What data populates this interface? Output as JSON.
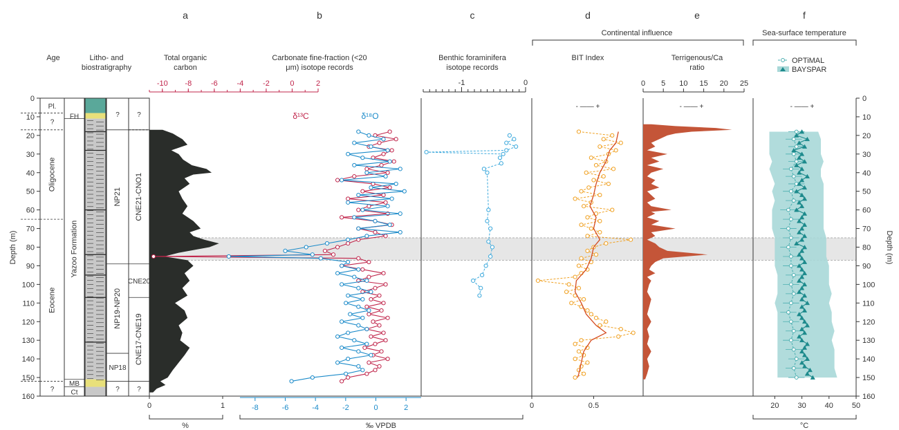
{
  "colors": {
    "toc": "#2a2d2a",
    "d13c": "#c0244a",
    "d18o": "#1a8ac9",
    "benthic": "#3aa8dc",
    "bit": "#f0a020",
    "bit_smooth": "#d44a1e",
    "terr": "#c45538",
    "optimal": "#4aaeb0",
    "bayspar": "#1d8a8c",
    "band": "#c8c8c8",
    "sst_fill": "#a8d8d8"
  },
  "depth_axis": {
    "label": "Depth (m)",
    "ticks": [
      0,
      10,
      20,
      30,
      40,
      50,
      60,
      70,
      80,
      90,
      100,
      110,
      120,
      130,
      140,
      150,
      160
    ],
    "range": [
      0,
      160
    ]
  },
  "highlight_band": [
    75,
    87
  ],
  "strat": {
    "col_headers": {
      "age": "Age",
      "litho": "Litho- and biostratigraphy"
    },
    "ages": [
      {
        "label": "Pl.",
        "top": 0,
        "bottom": 8
      },
      {
        "label": "?",
        "top": 8,
        "bottom": 17
      },
      {
        "label": "Oligocene",
        "top": 17,
        "bottom": 65
      },
      {
        "label": "Eocene",
        "top": 65,
        "bottom": 152
      },
      {
        "label": "?",
        "top": 152,
        "bottom": 160
      }
    ],
    "formations": [
      {
        "label": "FH",
        "top": 8,
        "bottom": 11
      },
      {
        "label": "Yazoo Formation",
        "top": 11,
        "bottom": 151
      },
      {
        "label": "MB",
        "top": 151,
        "bottom": 155
      },
      {
        "label": "Ct",
        "top": 155,
        "bottom": 160
      }
    ],
    "np": [
      {
        "label": "?",
        "top": 0,
        "bottom": 17
      },
      {
        "label": "NP21",
        "top": 17,
        "bottom": 89
      },
      {
        "label": "NP19-NP20",
        "top": 89,
        "bottom": 137
      },
      {
        "label": "NP18",
        "top": 137,
        "bottom": 152
      },
      {
        "label": "?",
        "top": 152,
        "bottom": 160
      }
    ],
    "cne": [
      {
        "label": "?",
        "top": 0,
        "bottom": 17
      },
      {
        "label": "CNE21-CNO1",
        "top": 17,
        "bottom": 89
      },
      {
        "label": "CNE20",
        "top": 89,
        "bottom": 107
      },
      {
        "label": "CNE17-CNE19",
        "top": 107,
        "bottom": 152
      },
      {
        "label": "?",
        "top": 152,
        "bottom": 160
      }
    ]
  },
  "panels": {
    "a": {
      "letter": "a",
      "title": "Total organic carbon",
      "unit": "%",
      "ticks": [
        0,
        1
      ]
    },
    "b": {
      "letter": "b",
      "title": "Carbonate fine-fraction (<20 μm) isotope records",
      "top_ticks": [
        -10,
        -8,
        -6,
        -4,
        -2,
        0,
        2
      ],
      "bottom_ticks": [
        -8,
        -6,
        -4,
        -2,
        0,
        2
      ],
      "unit": "‰ VPDB",
      "label_d13c": "δ¹³C",
      "label_d18o": "δ¹⁸O"
    },
    "c": {
      "letter": "c",
      "title": "Benthic foraminifera isotope records",
      "top_ticks": [
        -1,
        0
      ]
    },
    "d": {
      "letter": "d",
      "title": "BIT Index",
      "ticks": [
        0,
        0.5
      ],
      "trend": "-  ——  +"
    },
    "e": {
      "letter": "e",
      "title": "Terrigenous/Ca ratio",
      "top_ticks": [
        0,
        5,
        10,
        15,
        20,
        25
      ],
      "trend": "-  ——  +"
    },
    "f": {
      "letter": "f",
      "title": "Sea-surface temperature",
      "ticks": [
        20,
        30,
        40,
        50
      ],
      "unit": "°C",
      "legend_optimal": "OPTiMAL",
      "legend_bayspar": "BAYSPAR",
      "trend": "-  ——  +"
    }
  },
  "group_label": "Continental influence",
  "chart_data": [
    {
      "type": "area",
      "id": "toc",
      "x_unit": "%",
      "xlim": [
        0,
        1.05
      ],
      "depth": [
        17,
        19,
        22,
        25,
        28,
        30,
        33,
        36,
        38,
        40,
        41,
        43,
        46,
        50,
        54,
        58,
        62,
        66,
        70,
        72,
        74,
        76,
        78,
        80,
        83,
        85,
        87,
        90,
        94,
        98,
        102,
        106,
        110,
        114,
        118,
        122,
        126,
        130,
        134,
        138,
        142,
        146,
        150,
        152,
        154,
        156,
        158
      ],
      "x": [
        0.18,
        0.32,
        0.45,
        0.52,
        0.3,
        0.4,
        0.46,
        0.58,
        0.78,
        0.85,
        0.6,
        0.48,
        0.55,
        0.4,
        0.45,
        0.52,
        0.45,
        0.6,
        0.7,
        0.55,
        0.6,
        0.75,
        0.95,
        0.82,
        0.4,
        0.2,
        0.52,
        0.6,
        0.48,
        0.55,
        0.45,
        0.52,
        0.35,
        0.48,
        0.52,
        0.4,
        0.45,
        0.42,
        0.55,
        0.48,
        0.4,
        0.32,
        0.25,
        0.15,
        0.22,
        0.1,
        0.05
      ]
    },
    {
      "type": "line",
      "id": "d13c",
      "x_unit": "‰ VPDB",
      "xlim": [
        -11,
        2
      ],
      "depth": [
        18,
        20,
        22,
        24,
        26,
        28,
        30,
        32,
        34,
        36,
        38,
        40,
        42,
        44,
        46,
        48,
        50,
        52,
        54,
        56,
        58,
        60,
        62,
        64,
        66,
        68,
        70,
        72,
        74,
        76,
        78,
        80,
        82,
        84,
        85,
        86,
        88,
        90,
        92,
        94,
        96,
        98,
        100,
        102,
        104,
        106,
        108,
        110,
        112,
        114,
        116,
        118,
        120,
        122,
        124,
        126,
        128,
        130,
        132,
        134,
        136,
        138,
        140,
        142,
        144,
        146,
        148,
        150,
        152
      ],
      "x": [
        0.5,
        -0.2,
        0.8,
        0.0,
        -0.5,
        0.6,
        0.2,
        -0.3,
        0.7,
        0.1,
        -0.6,
        0.4,
        -1.2,
        -2.0,
        -0.3,
        0.5,
        -0.8,
        0.2,
        -1.5,
        0.3,
        -0.5,
        -1.0,
        0.4,
        -1.8,
        -0.2,
        0.6,
        -1.0,
        -0.2,
        0.3,
        -1.0,
        -1.5,
        -2.0,
        -2.6,
        -2.2,
        -10.8,
        -1.0,
        -0.5,
        -1.8,
        -0.8,
        0.2,
        -0.5,
        -1.0,
        0.3,
        -0.2,
        -0.8,
        0.0,
        -0.4,
        0.2,
        -0.6,
        0.1,
        -0.5,
        0.4,
        -0.3,
        0.0,
        -0.6,
        0.2,
        -0.4,
        0.3,
        -0.2,
        -0.7,
        0.1,
        -0.3,
        0.4,
        -0.5,
        0.0,
        -0.2,
        -0.6,
        -1.5,
        -1.8
      ]
    },
    {
      "type": "line",
      "id": "d18o",
      "x_unit": "‰ VPDB",
      "xlim": [
        -11,
        2
      ],
      "depth": [
        18,
        20,
        22,
        24,
        26,
        28,
        30,
        32,
        34,
        36,
        38,
        40,
        42,
        44,
        46,
        48,
        50,
        52,
        54,
        56,
        58,
        60,
        62,
        64,
        66,
        68,
        70,
        72,
        74,
        76,
        78,
        80,
        82,
        84,
        85,
        86,
        88,
        90,
        92,
        94,
        96,
        98,
        100,
        102,
        104,
        106,
        108,
        110,
        112,
        114,
        116,
        118,
        120,
        122,
        124,
        126,
        128,
        130,
        132,
        134,
        136,
        138,
        140,
        142,
        144,
        146,
        148,
        150,
        152
      ],
      "x": [
        -1.0,
        -0.5,
        0.2,
        -1.2,
        -0.4,
        0.4,
        -1.5,
        -0.8,
        0.5,
        -1.2,
        1.0,
        -0.6,
        0.3,
        -1.8,
        0.8,
        -0.4,
        1.2,
        -1.0,
        0.6,
        -1.5,
        0.4,
        -0.8,
        1.0,
        -1.2,
        -0.2,
        0.5,
        -1.0,
        1.0,
        -0.6,
        -1.5,
        -2.5,
        -3.5,
        -4.5,
        -3.2,
        -7.2,
        -2.8,
        -1.5,
        -1.8,
        -1.0,
        -2.0,
        -1.2,
        -0.6,
        -1.8,
        -1.0,
        -0.4,
        -1.5,
        -0.8,
        -1.6,
        -1.0,
        -0.5,
        -1.4,
        -0.8,
        -1.8,
        -1.0,
        -0.6,
        -1.5,
        -2.0,
        -1.2,
        -0.6,
        -1.8,
        -1.0,
        -0.4,
        -1.5,
        -2.0,
        -1.0,
        -0.8,
        -1.6,
        -3.2,
        -4.2
      ]
    },
    {
      "type": "line",
      "id": "benthic",
      "xlim": [
        -1.6,
        0
      ],
      "depth": [
        20,
        22,
        24,
        26,
        28,
        29,
        30,
        32,
        35,
        38,
        40,
        60,
        66,
        70,
        77,
        80,
        85,
        90,
        95,
        98,
        102,
        106
      ],
      "x": [
        -0.25,
        -0.18,
        -0.3,
        -0.15,
        -0.3,
        -1.55,
        -0.35,
        -0.4,
        -0.38,
        -0.65,
        -0.6,
        -0.58,
        -0.6,
        -0.55,
        -0.58,
        -0.52,
        -0.55,
        -0.62,
        -0.68,
        -0.82,
        -0.7,
        -0.72
      ]
    },
    {
      "type": "line",
      "id": "bit",
      "xlim": [
        0,
        0.9
      ],
      "depth": [
        18,
        20,
        22,
        24,
        26,
        28,
        30,
        32,
        34,
        36,
        38,
        40,
        42,
        44,
        46,
        48,
        50,
        52,
        54,
        56,
        58,
        60,
        62,
        64,
        66,
        68,
        70,
        72,
        74,
        76,
        78,
        80,
        82,
        84,
        86,
        88,
        90,
        92,
        94,
        96,
        98,
        100,
        102,
        104,
        106,
        108,
        110,
        112,
        114,
        116,
        118,
        120,
        122,
        124,
        126,
        128,
        130,
        132,
        134,
        136,
        138,
        140,
        142,
        144,
        146,
        148,
        150
      ],
      "x": [
        0.38,
        0.65,
        0.58,
        0.72,
        0.55,
        0.68,
        0.62,
        0.48,
        0.6,
        0.52,
        0.66,
        0.44,
        0.58,
        0.5,
        0.62,
        0.46,
        0.4,
        0.55,
        0.35,
        0.48,
        0.42,
        0.65,
        0.52,
        0.45,
        0.55,
        0.4,
        0.48,
        0.55,
        0.45,
        0.8,
        0.6,
        0.5,
        0.45,
        0.52,
        0.4,
        0.48,
        0.38,
        0.45,
        0.4,
        0.35,
        0.05,
        0.3,
        0.38,
        0.28,
        0.35,
        0.42,
        0.32,
        0.4,
        0.45,
        0.48,
        0.52,
        0.6,
        0.55,
        0.72,
        0.82,
        0.7,
        0.4,
        0.35,
        0.45,
        0.38,
        0.42,
        0.35,
        0.45,
        0.4,
        0.38,
        0.42,
        0.35
      ]
    },
    {
      "type": "line",
      "id": "bit_smooth",
      "xlim": [
        0,
        0.9
      ],
      "depth": [
        18,
        24,
        28,
        34,
        40,
        46,
        52,
        58,
        64,
        70,
        76,
        80,
        86,
        92,
        98,
        104,
        110,
        116,
        122,
        126,
        130,
        136,
        142,
        148,
        150
      ],
      "x": [
        0.7,
        0.68,
        0.63,
        0.6,
        0.55,
        0.52,
        0.5,
        0.47,
        0.52,
        0.5,
        0.55,
        0.5,
        0.48,
        0.44,
        0.36,
        0.35,
        0.4,
        0.44,
        0.52,
        0.6,
        0.48,
        0.42,
        0.4,
        0.38,
        0.37
      ]
    },
    {
      "type": "area",
      "id": "terr",
      "xlim": [
        0,
        25
      ],
      "depth": [
        14,
        15,
        16,
        17,
        18,
        19,
        20,
        22,
        24,
        26,
        28,
        30,
        32,
        34,
        36,
        38,
        40,
        42,
        44,
        46,
        48,
        50,
        52,
        54,
        56,
        58,
        60,
        61,
        62,
        64,
        66,
        68,
        70,
        72,
        74,
        76,
        78,
        80,
        82,
        84,
        86,
        88,
        90,
        92,
        94,
        96,
        98,
        100,
        104,
        108,
        112,
        116,
        120,
        124,
        128,
        132,
        136,
        140,
        144,
        148,
        151
      ],
      "x": [
        2,
        8,
        18,
        22,
        12,
        8,
        6,
        4,
        2,
        3,
        1,
        6,
        2,
        4,
        1,
        5,
        2,
        1,
        3,
        2,
        4,
        1,
        2,
        3,
        1,
        2,
        7,
        2,
        3,
        1,
        4,
        2,
        8,
        2,
        3,
        1,
        3,
        4,
        6,
        16,
        5,
        3,
        2,
        1.5,
        3,
        1,
        2,
        1.5,
        1,
        2,
        1.5,
        1,
        2,
        1,
        1.5,
        1,
        2,
        1,
        1.5,
        1,
        0.5
      ]
    },
    {
      "type": "line",
      "id": "optimal",
      "xlim": [
        15,
        50
      ],
      "depth": [
        18,
        22,
        26,
        30,
        34,
        38,
        42,
        46,
        50,
        55,
        60,
        65,
        70,
        75,
        80,
        85,
        90,
        95,
        100,
        105,
        110,
        115,
        120,
        125,
        130,
        135,
        140,
        145,
        150
      ],
      "x": [
        28,
        27,
        28,
        27,
        28,
        26,
        27,
        28,
        26,
        27,
        25,
        26,
        25,
        26,
        25,
        26,
        26,
        27,
        26,
        27,
        26,
        25,
        26,
        27,
        26,
        27,
        28,
        27,
        28
      ],
      "x_low": [
        18,
        18,
        18,
        18,
        19,
        18,
        19,
        20,
        19,
        20,
        19,
        19,
        19,
        20,
        20,
        20,
        20,
        21,
        21,
        21,
        20,
        21,
        21,
        21,
        21,
        21,
        21,
        21,
        21
      ],
      "x_high": [
        36,
        37,
        37,
        37,
        38,
        37,
        37,
        38,
        38,
        38,
        38,
        38,
        38,
        39,
        39,
        39,
        40,
        40,
        40,
        41,
        40,
        41,
        41,
        42,
        41,
        42,
        42,
        42,
        43
      ]
    },
    {
      "type": "line",
      "id": "bayspar",
      "xlim": [
        15,
        50
      ],
      "depth": [
        18,
        20,
        22,
        24,
        26,
        28,
        30,
        32,
        34,
        36,
        38,
        40,
        42,
        44,
        46,
        48,
        50,
        52,
        54,
        56,
        58,
        60,
        62,
        64,
        66,
        68,
        70,
        72,
        74,
        76,
        78,
        80,
        82,
        84,
        86,
        88,
        90,
        92,
        94,
        96,
        98,
        100,
        102,
        104,
        106,
        108,
        110,
        112,
        114,
        116,
        118,
        120,
        122,
        124,
        126,
        128,
        130,
        132,
        134,
        136,
        138,
        140,
        142,
        144,
        146,
        148,
        150
      ],
      "x": [
        30,
        28,
        32,
        29,
        31,
        27,
        30,
        29,
        31,
        28,
        30,
        29,
        32,
        30,
        29,
        31,
        28,
        30,
        31,
        29,
        30,
        28,
        31,
        30,
        29,
        31,
        30,
        29,
        31,
        30,
        28,
        31,
        30,
        29,
        30,
        31,
        29,
        30,
        31,
        30,
        29,
        31,
        30,
        29,
        31,
        30,
        32,
        30,
        31,
        29,
        30,
        31,
        32,
        30,
        31,
        29,
        30,
        32,
        31,
        30,
        31,
        32,
        30,
        31,
        33,
        32,
        34
      ]
    }
  ]
}
